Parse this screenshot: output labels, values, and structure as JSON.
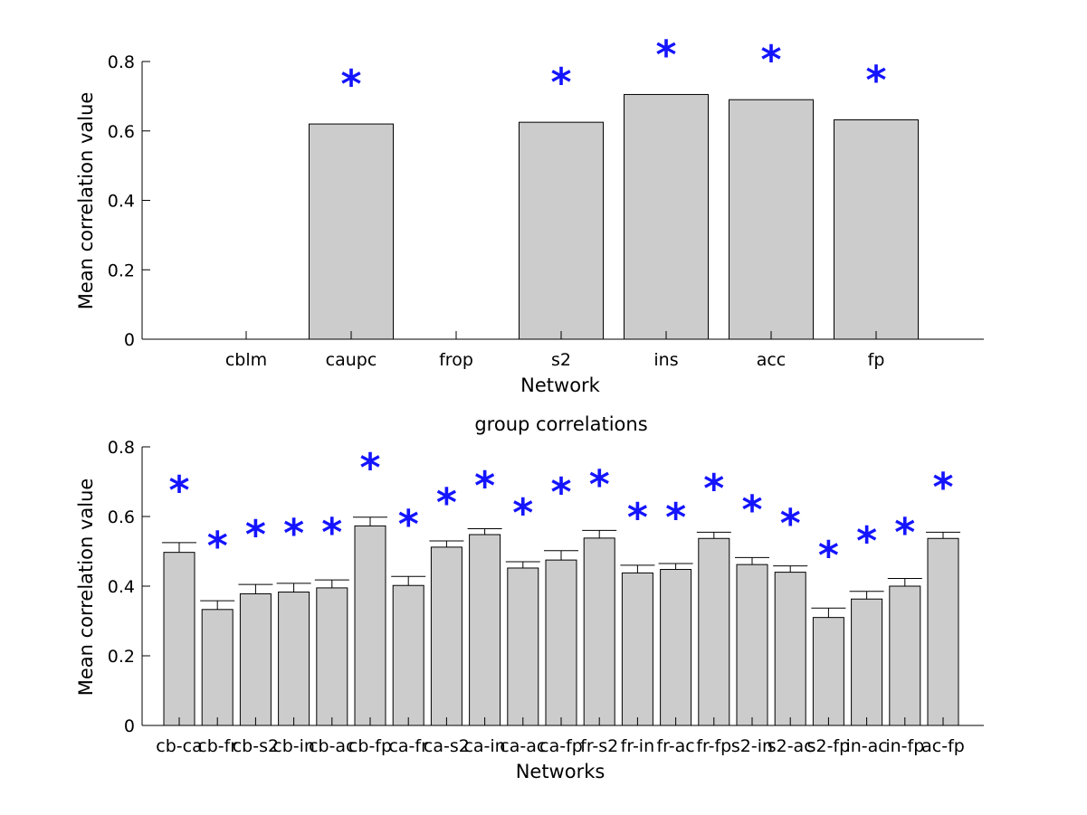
{
  "chart_data": [
    {
      "type": "bar",
      "title": "",
      "xlabel": "Network",
      "ylabel": "Mean correlation value",
      "ylim": [
        0,
        0.8
      ],
      "yticks": [
        "0",
        "0.2",
        "0.4",
        "0.6",
        "0.8"
      ],
      "categories": [
        "cblm",
        "caupc",
        "frop",
        "s2",
        "ins",
        "acc",
        "fp"
      ],
      "values": [
        0,
        0.62,
        0,
        0.625,
        0.705,
        0.69,
        0.632
      ],
      "significant": [
        false,
        true,
        false,
        true,
        true,
        true,
        true
      ],
      "marker": "*",
      "marker_color": "#1414ff",
      "bar_color": "#cccccc"
    },
    {
      "type": "bar",
      "title": "group correlations",
      "xlabel": "Networks",
      "ylabel": "Mean correlation value",
      "ylim": [
        0,
        0.8
      ],
      "yticks": [
        "0",
        "0.2",
        "0.4",
        "0.6",
        "0.8"
      ],
      "categories": [
        "cb-ca",
        "cb-fr",
        "cb-s2",
        "cb-in",
        "cb-ac",
        "cb-fp",
        "ca-fr",
        "ca-s2",
        "ca-in",
        "ca-ac",
        "ca-fp",
        "fr-s2",
        "fr-in",
        "fr-ac",
        "fr-fp",
        "s2-in",
        "s2-ac",
        "s2-fp",
        "in-ac",
        "in-fp",
        "ac-fp"
      ],
      "values": [
        0.497,
        0.333,
        0.378,
        0.383,
        0.395,
        0.573,
        0.402,
        0.512,
        0.548,
        0.452,
        0.475,
        0.538,
        0.438,
        0.448,
        0.537,
        0.462,
        0.44,
        0.31,
        0.363,
        0.4,
        0.537
      ],
      "error_upper": [
        0.525,
        0.358,
        0.405,
        0.408,
        0.418,
        0.598,
        0.428,
        0.53,
        0.565,
        0.47,
        0.502,
        0.56,
        0.46,
        0.465,
        0.555,
        0.482,
        0.458,
        0.337,
        0.385,
        0.422,
        0.555
      ],
      "significant": [
        true,
        true,
        true,
        true,
        true,
        true,
        true,
        true,
        true,
        true,
        true,
        true,
        true,
        true,
        true,
        true,
        true,
        true,
        true,
        true,
        true
      ],
      "star_values": [
        0.675,
        0.515,
        0.548,
        0.552,
        0.555,
        0.74,
        0.578,
        0.64,
        0.688,
        0.61,
        0.67,
        0.692,
        0.598,
        0.598,
        0.68,
        0.62,
        0.58,
        0.488,
        0.53,
        0.555,
        0.685
      ],
      "marker": "*",
      "marker_color": "#1414ff",
      "bar_color": "#cccccc"
    }
  ]
}
